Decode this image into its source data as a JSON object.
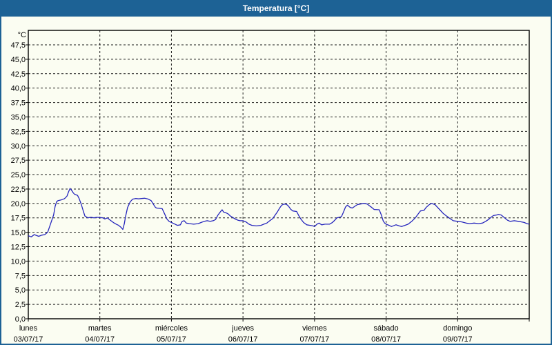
{
  "window": {
    "title": "Temperatura [°C]"
  },
  "colors": {
    "titlebar": "#1d6295",
    "window_border": "#1d6295",
    "background": "#fbfdf2",
    "plot_border": "#000000",
    "grid": "#1a1a1a",
    "line": "#2424bc",
    "label_text": "#000000",
    "title_text": "#ffffff"
  },
  "y_axis": {
    "unit_label": "°C",
    "tick_labels": [
      "47,5",
      "45,0",
      "42,5",
      "40,0",
      "37,5",
      "35,0",
      "32,5",
      "30,0",
      "27,5",
      "25,0",
      "22,5",
      "20,0",
      "17,5",
      "15,0",
      "12,5",
      "10,0",
      "7,5",
      "5,0",
      "2,5",
      "0,0"
    ]
  },
  "x_axis": {
    "days": [
      {
        "name": "lunes",
        "date": "03/07/17"
      },
      {
        "name": "martes",
        "date": "04/07/17"
      },
      {
        "name": "miércoles",
        "date": "05/07/17"
      },
      {
        "name": "jueves",
        "date": "06/07/17"
      },
      {
        "name": "viernes",
        "date": "07/07/17"
      },
      {
        "name": "sábado",
        "date": "08/07/17"
      },
      {
        "name": "domingo",
        "date": "09/07/17"
      }
    ]
  },
  "chart_data": {
    "type": "line",
    "title": "Temperatura [°C]",
    "ylabel": "°C",
    "ylim": [
      0,
      47.5
    ],
    "ytick_step": 2.5,
    "x_unit": "hours from lunes 03/07/17 00:00 to domingo 09/07/17 24:00",
    "xlim": [
      0,
      168
    ],
    "x_day_span_hours": 24,
    "grid": "dashed",
    "legend": "none",
    "series": [
      {
        "name": "Temperatura",
        "color": "#2424bc",
        "points": [
          [
            0,
            14.4
          ],
          [
            1,
            14.2
          ],
          [
            2,
            14.6
          ],
          [
            3.5,
            14.3
          ],
          [
            4.5,
            14.5
          ],
          [
            5.5,
            14.6
          ],
          [
            6.5,
            15.0
          ],
          [
            7.5,
            16.5
          ],
          [
            8.5,
            18.0
          ],
          [
            9,
            19.5
          ],
          [
            9.5,
            20.3
          ],
          [
            10,
            20.5
          ],
          [
            11,
            20.6
          ],
          [
            12,
            20.8
          ],
          [
            12.5,
            21.0
          ],
          [
            13,
            21.3
          ],
          [
            13.5,
            22.0
          ],
          [
            14,
            22.6
          ],
          [
            14.5,
            22.3
          ],
          [
            15,
            21.9
          ],
          [
            15.5,
            21.6
          ],
          [
            16.5,
            21.4
          ],
          [
            17,
            20.9
          ],
          [
            17.8,
            19.8
          ],
          [
            18.5,
            18.6
          ],
          [
            19,
            17.8
          ],
          [
            20,
            17.5
          ],
          [
            21,
            17.6
          ],
          [
            22,
            17.5
          ],
          [
            23,
            17.6
          ],
          [
            24,
            17.55
          ],
          [
            25,
            17.5
          ],
          [
            25.7,
            17.3
          ],
          [
            26.5,
            17.5
          ],
          [
            27.5,
            17.1
          ],
          [
            28.5,
            16.7
          ],
          [
            29.5,
            16.4
          ],
          [
            30.3,
            16.2
          ],
          [
            31,
            15.9
          ],
          [
            31.7,
            15.5
          ],
          [
            32.2,
            16.5
          ],
          [
            32.6,
            17.7
          ],
          [
            33.3,
            19.3
          ],
          [
            34.2,
            20.3
          ],
          [
            35,
            20.75
          ],
          [
            36,
            20.85
          ],
          [
            37,
            20.8
          ],
          [
            38,
            20.85
          ],
          [
            39,
            20.9
          ],
          [
            40,
            20.8
          ],
          [
            41.2,
            20.5
          ],
          [
            41.9,
            19.9
          ],
          [
            42.6,
            19.35
          ],
          [
            43,
            19.2
          ],
          [
            44.9,
            19.1
          ],
          [
            45.8,
            18.1
          ],
          [
            46.5,
            17.3
          ],
          [
            47.2,
            16.9
          ],
          [
            48,
            16.7
          ],
          [
            48.8,
            16.5
          ],
          [
            50,
            16.2
          ],
          [
            51,
            16.3
          ],
          [
            51.6,
            16.9
          ],
          [
            52.3,
            17.0
          ],
          [
            53,
            16.6
          ],
          [
            54,
            16.5
          ],
          [
            55.5,
            16.4
          ],
          [
            57,
            16.5
          ],
          [
            58,
            16.7
          ],
          [
            59,
            16.9
          ],
          [
            60,
            17.0
          ],
          [
            61,
            16.9
          ],
          [
            62,
            17.0
          ],
          [
            62.8,
            17.2
          ],
          [
            63.5,
            17.9
          ],
          [
            64.2,
            18.4
          ],
          [
            65,
            18.9
          ],
          [
            65.5,
            18.5
          ],
          [
            66.2,
            18.4
          ],
          [
            67,
            18.2
          ],
          [
            67.8,
            17.8
          ],
          [
            68.5,
            17.6
          ],
          [
            69.4,
            17.3
          ],
          [
            70.3,
            17.1
          ],
          [
            71,
            17.0
          ],
          [
            72,
            17.0
          ],
          [
            73,
            16.8
          ],
          [
            74,
            16.4
          ],
          [
            75,
            16.2
          ],
          [
            76.5,
            16.1
          ],
          [
            78,
            16.2
          ],
          [
            79,
            16.4
          ],
          [
            80,
            16.6
          ],
          [
            81,
            17.0
          ],
          [
            82,
            17.4
          ],
          [
            82.8,
            18.0
          ],
          [
            83.5,
            18.5
          ],
          [
            84.3,
            19.2
          ],
          [
            85,
            19.7
          ],
          [
            85.8,
            19.9
          ],
          [
            86.6,
            19.85
          ],
          [
            87.3,
            19.5
          ],
          [
            88,
            19.0
          ],
          [
            88.7,
            18.7
          ],
          [
            90,
            18.6
          ],
          [
            90.7,
            17.9
          ],
          [
            91.4,
            17.3
          ],
          [
            92.3,
            16.7
          ],
          [
            93.4,
            16.3
          ],
          [
            94.5,
            16.2
          ],
          [
            95.5,
            16.1
          ],
          [
            96,
            16.0
          ],
          [
            96.8,
            16.4
          ],
          [
            97.5,
            16.6
          ],
          [
            98.4,
            16.3
          ],
          [
            99.5,
            16.4
          ],
          [
            101,
            16.4
          ],
          [
            102,
            16.7
          ],
          [
            102.8,
            17.1
          ],
          [
            103.5,
            17.5
          ],
          [
            104.3,
            17.6
          ],
          [
            105,
            17.7
          ],
          [
            105.7,
            18.5
          ],
          [
            106.4,
            19.4
          ],
          [
            107,
            19.7
          ],
          [
            108,
            19.3
          ],
          [
            108.7,
            19.2
          ],
          [
            109.5,
            19.5
          ],
          [
            110.4,
            19.8
          ],
          [
            111.4,
            19.9
          ],
          [
            112.5,
            20.0
          ],
          [
            113.7,
            19.9
          ],
          [
            114.4,
            19.6
          ],
          [
            115.2,
            19.3
          ],
          [
            116,
            18.95
          ],
          [
            117.7,
            18.9
          ],
          [
            118.4,
            18.0
          ],
          [
            119,
            17.0
          ],
          [
            119.5,
            16.6
          ],
          [
            120,
            16.4
          ],
          [
            121,
            16.2
          ],
          [
            121.8,
            16.0
          ],
          [
            123.3,
            16.3
          ],
          [
            124.4,
            16.1
          ],
          [
            125.2,
            16.0
          ],
          [
            126.3,
            16.2
          ],
          [
            127.4,
            16.4
          ],
          [
            128.6,
            16.9
          ],
          [
            129.8,
            17.5
          ],
          [
            130.8,
            18.2
          ],
          [
            131.5,
            18.7
          ],
          [
            132.7,
            18.8
          ],
          [
            133.4,
            19.3
          ],
          [
            134.5,
            19.8
          ],
          [
            135.2,
            20.0
          ],
          [
            136.4,
            19.8
          ],
          [
            137.3,
            19.3
          ],
          [
            138,
            18.9
          ],
          [
            139.1,
            18.3
          ],
          [
            140.3,
            17.8
          ],
          [
            141.4,
            17.4
          ],
          [
            142.5,
            17.0
          ],
          [
            144,
            16.9
          ],
          [
            145.4,
            16.8
          ],
          [
            146.8,
            16.6
          ],
          [
            148,
            16.5
          ],
          [
            149.5,
            16.6
          ],
          [
            151,
            16.5
          ],
          [
            152.3,
            16.6
          ],
          [
            153.4,
            16.9
          ],
          [
            154.3,
            17.2
          ],
          [
            155.2,
            17.6
          ],
          [
            156,
            17.9
          ],
          [
            157,
            18.0
          ],
          [
            157.7,
            18.1
          ],
          [
            158.6,
            18.0
          ],
          [
            159.3,
            17.7
          ],
          [
            160,
            17.4
          ],
          [
            160.7,
            17.1
          ],
          [
            161.6,
            16.9
          ],
          [
            163,
            17.0
          ],
          [
            164.4,
            16.9
          ],
          [
            165.4,
            16.8
          ],
          [
            166.3,
            16.7
          ],
          [
            167.2,
            16.5
          ],
          [
            168,
            16.4
          ]
        ]
      }
    ]
  }
}
